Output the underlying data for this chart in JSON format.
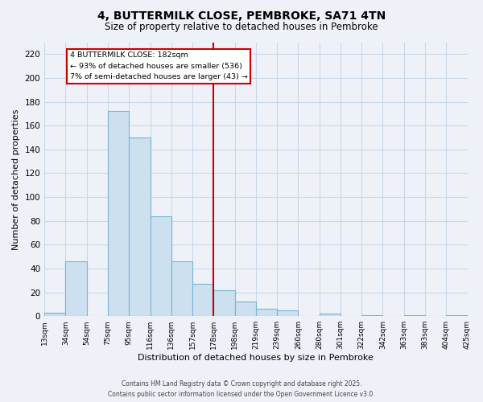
{
  "title": "4, BUTTERMILK CLOSE, PEMBROKE, SA71 4TN",
  "subtitle": "Size of property relative to detached houses in Pembroke",
  "xlabel": "Distribution of detached houses by size in Pembroke",
  "ylabel": "Number of detached properties",
  "bin_labels": [
    "13sqm",
    "34sqm",
    "54sqm",
    "75sqm",
    "95sqm",
    "116sqm",
    "136sqm",
    "157sqm",
    "178sqm",
    "198sqm",
    "219sqm",
    "239sqm",
    "260sqm",
    "280sqm",
    "301sqm",
    "322sqm",
    "342sqm",
    "363sqm",
    "383sqm",
    "404sqm",
    "425sqm"
  ],
  "bar_values": [
    3,
    46,
    0,
    172,
    150,
    84,
    46,
    27,
    22,
    12,
    6,
    5,
    0,
    2,
    0,
    1,
    0,
    1,
    0,
    1
  ],
  "bar_color": "#cce0f0",
  "bar_edge_color": "#7ab4d4",
  "vline_x": 8.0,
  "vline_color": "#cc0000",
  "annotation_line1": "4 BUTTERMILK CLOSE: 182sqm",
  "annotation_line2": "← 93% of detached houses are smaller (536)",
  "annotation_line3": "7% of semi-detached houses are larger (43) →",
  "annotation_box_color": "white",
  "annotation_box_edge": "#cc0000",
  "footer_line1": "Contains HM Land Registry data © Crown copyright and database right 2025.",
  "footer_line2": "Contains public sector information licensed under the Open Government Licence v3.0.",
  "ylim": [
    0,
    230
  ],
  "yticks": [
    0,
    20,
    40,
    60,
    80,
    100,
    120,
    140,
    160,
    180,
    200,
    220
  ],
  "grid_color": "#c8d8e8",
  "background_color": "#eef2f8"
}
